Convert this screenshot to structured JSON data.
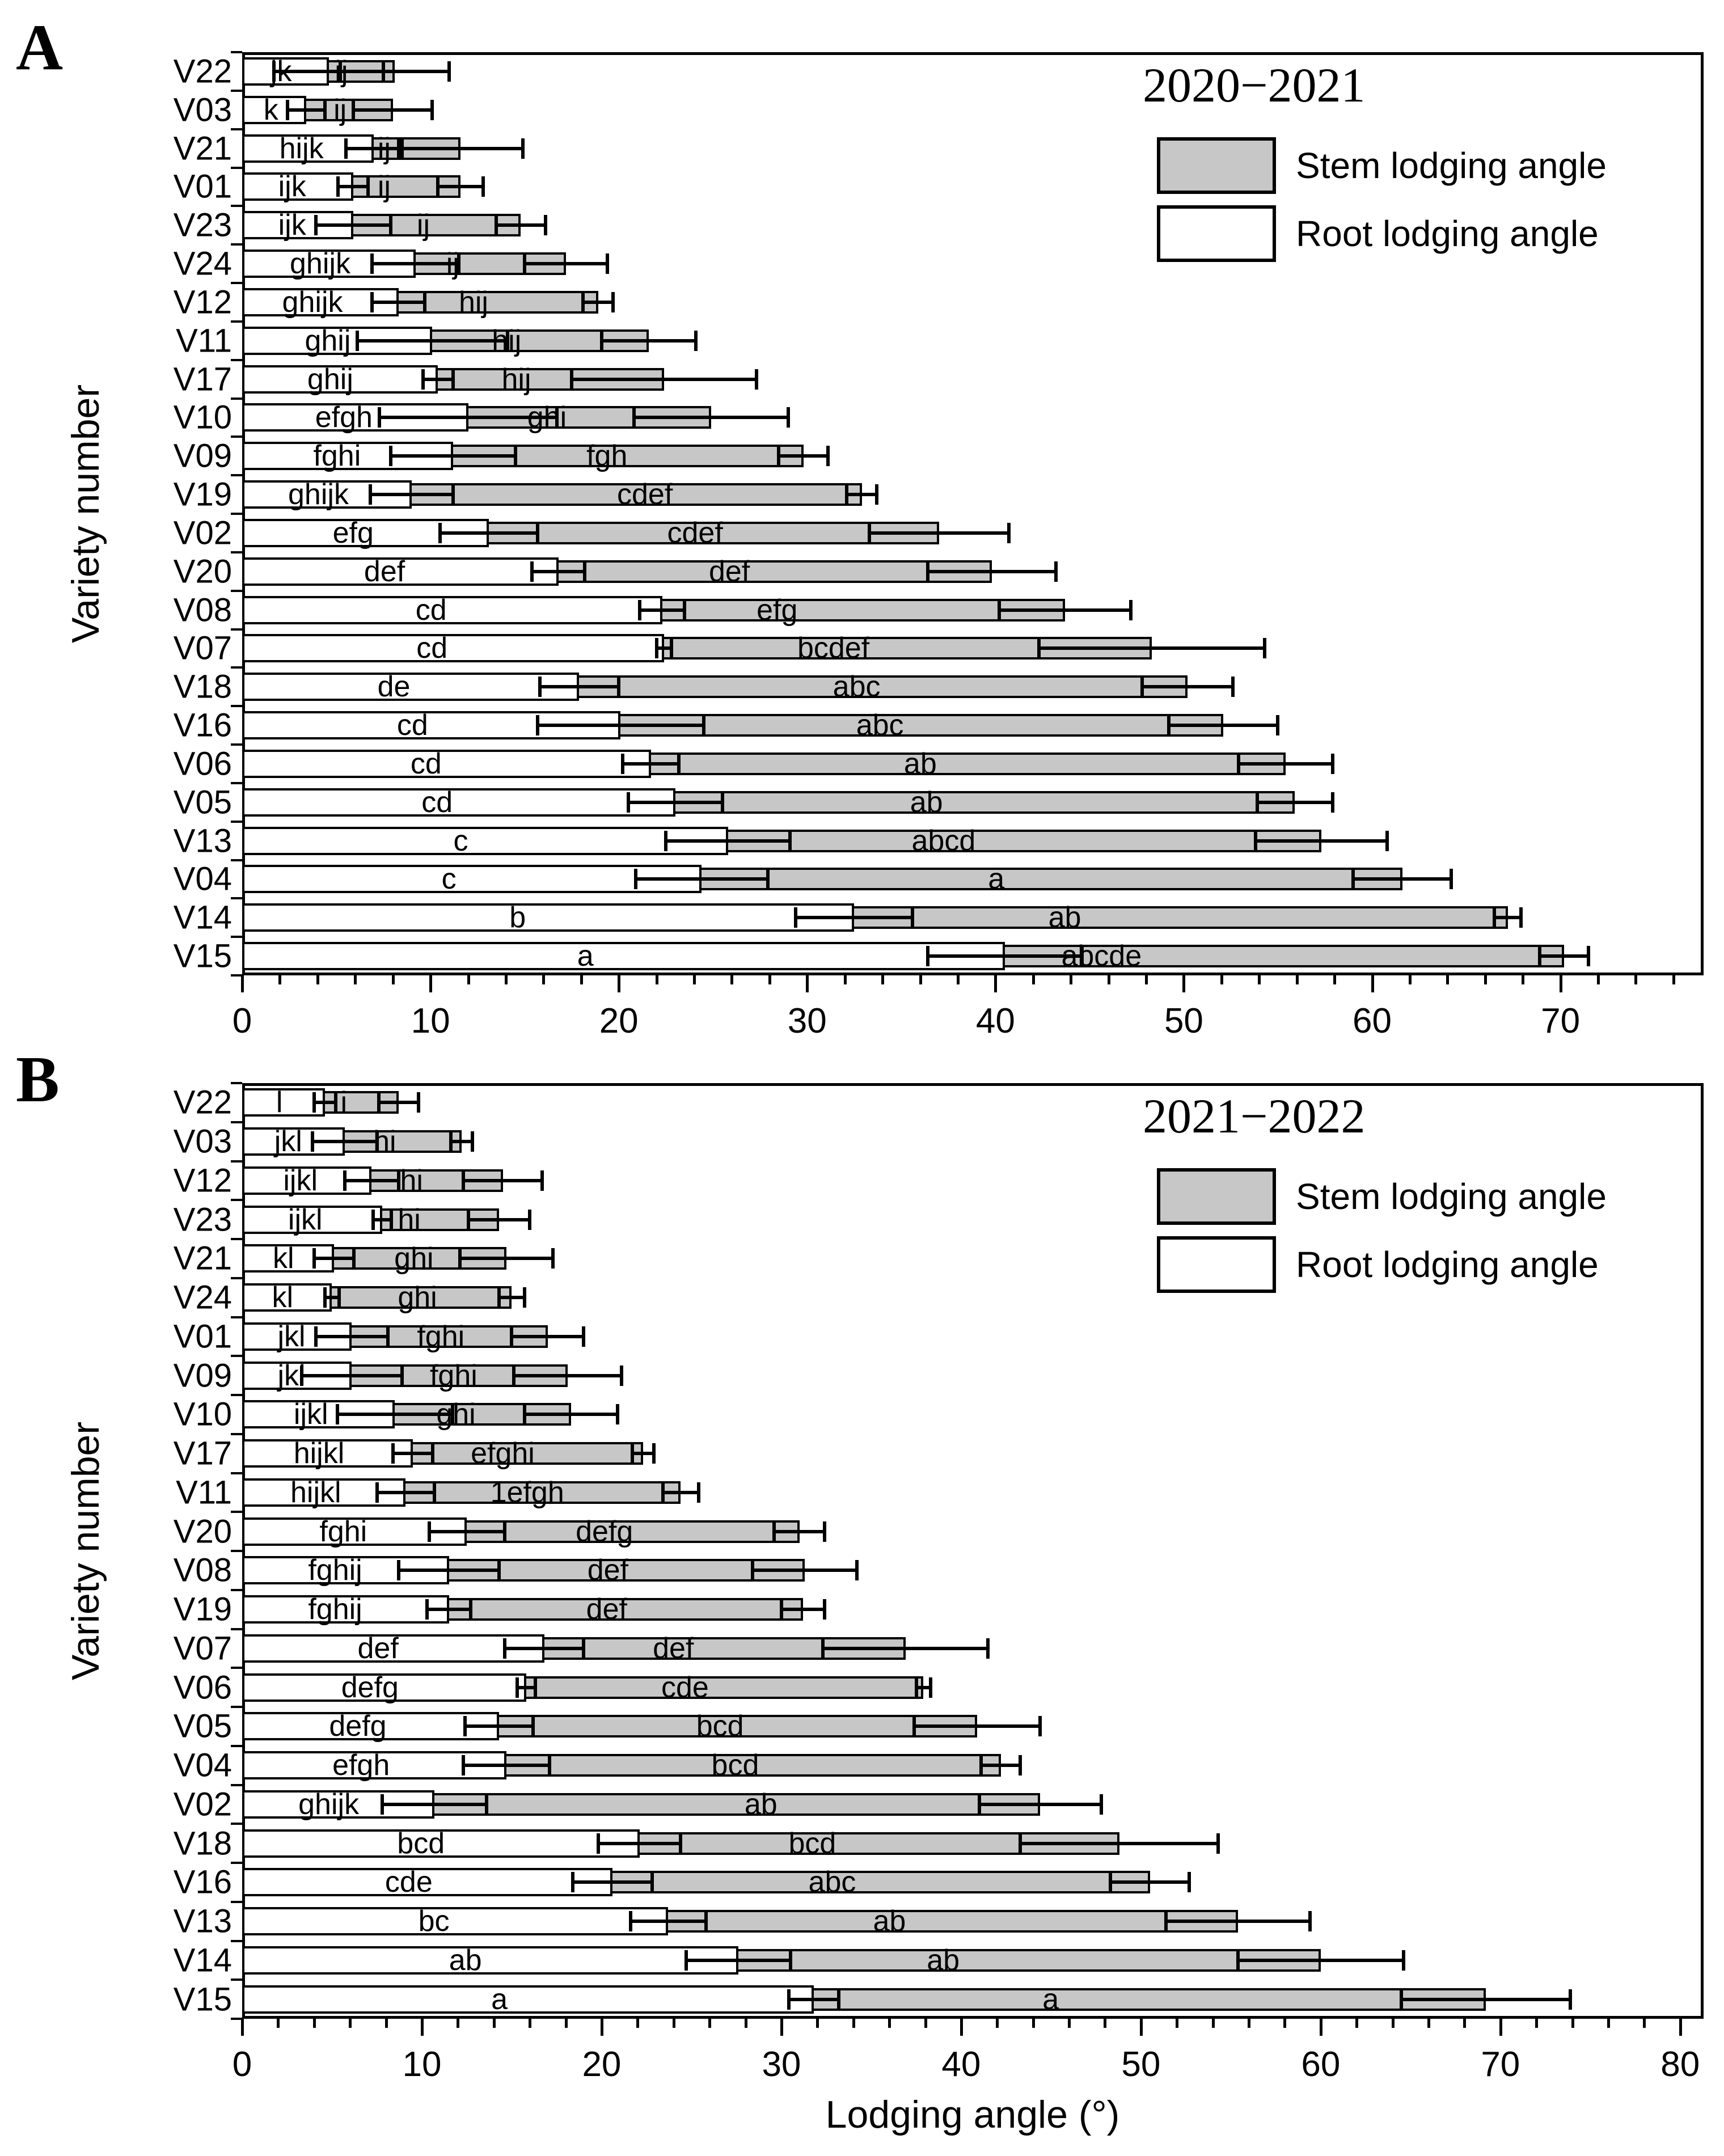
{
  "figure": {
    "xlabel": "Lodging angle (°)",
    "ylabel": "Variety number"
  },
  "chart_data": [
    {
      "type": "bar",
      "panel_label": "A",
      "title": "2020−2021",
      "legend": {
        "stem": "Stem lodging angle",
        "root": "Root lodging angle"
      },
      "xlabel": "Lodging angle (°)",
      "ylabel": "Variety number",
      "xlim": [
        0,
        77.6
      ],
      "xticks": [
        0,
        10,
        20,
        30,
        40,
        50,
        60,
        70
      ],
      "minor_tick_step": 2,
      "bar_color": "#c7c7c7",
      "series_note": "root = white bar (Root lodging angle), stem = gray bar (Stem lodging angle), values in degrees with ± error",
      "rows": [
        {
          "variety": "V22",
          "root": 4.6,
          "root_err": 2.9,
          "root_letter": "jk",
          "stem": 8.1,
          "stem_err": 2.9,
          "stem_letter": "ij"
        },
        {
          "variety": "V03",
          "root": 3.4,
          "root_err": 1.0,
          "root_letter": "k",
          "stem": 8.0,
          "stem_err": 2.1,
          "stem_letter": "ij"
        },
        {
          "variety": "V21",
          "root": 7.0,
          "root_err": 1.5,
          "root_letter": "hijk",
          "stem": 11.6,
          "stem_err": 3.3,
          "stem_letter": "ij"
        },
        {
          "variety": "V01",
          "root": 5.9,
          "root_err": 0.8,
          "root_letter": "ijk",
          "stem": 11.6,
          "stem_err": 1.2,
          "stem_letter": "ij"
        },
        {
          "variety": "V23",
          "root": 5.9,
          "root_err": 2.0,
          "root_letter": "ijk",
          "stem": 14.8,
          "stem_err": 1.3,
          "stem_letter": "ij"
        },
        {
          "variety": "V24",
          "root": 9.2,
          "root_err": 2.3,
          "root_letter": "ghijk",
          "stem": 17.2,
          "stem_err": 2.2,
          "stem_letter": "ij"
        },
        {
          "variety": "V12",
          "root": 8.3,
          "root_err": 1.4,
          "root_letter": "ghijk",
          "stem": 18.9,
          "stem_err": 0.8,
          "stem_letter": "hij"
        },
        {
          "variety": "V11",
          "root": 10.1,
          "root_err": 4.0,
          "root_letter": "ghij",
          "stem": 21.6,
          "stem_err": 2.5,
          "stem_letter": "hij"
        },
        {
          "variety": "V17",
          "root": 10.4,
          "root_err": 0.8,
          "root_letter": "ghij",
          "stem": 22.4,
          "stem_err": 4.9,
          "stem_letter": "hij"
        },
        {
          "variety": "V10",
          "root": 12.0,
          "root_err": 4.7,
          "root_letter": "efgh",
          "stem": 24.9,
          "stem_err": 4.1,
          "stem_letter": "ghi"
        },
        {
          "variety": "V09",
          "root": 11.2,
          "root_err": 3.3,
          "root_letter": "fghi",
          "stem": 29.8,
          "stem_err": 1.3,
          "stem_letter": "fgh"
        },
        {
          "variety": "V19",
          "root": 9.0,
          "root_err": 2.2,
          "root_letter": "ghijk",
          "stem": 32.9,
          "stem_err": 0.8,
          "stem_letter": "cdef"
        },
        {
          "variety": "V02",
          "root": 13.1,
          "root_err": 2.6,
          "root_letter": "efg",
          "stem": 37.0,
          "stem_err": 3.7,
          "stem_letter": "cdef"
        },
        {
          "variety": "V20",
          "root": 16.8,
          "root_err": 1.4,
          "root_letter": "def",
          "stem": 39.8,
          "stem_err": 3.4,
          "stem_letter": "def"
        },
        {
          "variety": "V08",
          "root": 22.3,
          "root_err": 1.2,
          "root_letter": "cd",
          "stem": 43.7,
          "stem_err": 3.5,
          "stem_letter": "efg"
        },
        {
          "variety": "V07",
          "root": 22.4,
          "root_err": 0.4,
          "root_letter": "cd",
          "stem": 48.3,
          "stem_err": 6.0,
          "stem_letter": "bcdef"
        },
        {
          "variety": "V18",
          "root": 17.9,
          "root_err": 2.1,
          "root_letter": "de",
          "stem": 50.2,
          "stem_err": 2.4,
          "stem_letter": "abc"
        },
        {
          "variety": "V16",
          "root": 20.1,
          "root_err": 4.4,
          "root_letter": "cd",
          "stem": 52.1,
          "stem_err": 2.9,
          "stem_letter": "abc"
        },
        {
          "variety": "V06",
          "root": 21.7,
          "root_err": 1.5,
          "root_letter": "cd",
          "stem": 55.4,
          "stem_err": 2.5,
          "stem_letter": "ab"
        },
        {
          "variety": "V05",
          "root": 23.0,
          "root_err": 2.5,
          "root_letter": "cd",
          "stem": 55.9,
          "stem_err": 2.0,
          "stem_letter": "ab"
        },
        {
          "variety": "V13",
          "root": 25.8,
          "root_err": 3.3,
          "root_letter": "c",
          "stem": 57.3,
          "stem_err": 3.5,
          "stem_letter": "abcd"
        },
        {
          "variety": "V04",
          "root": 24.4,
          "root_err": 3.5,
          "root_letter": "c",
          "stem": 61.6,
          "stem_err": 2.6,
          "stem_letter": "a"
        },
        {
          "variety": "V14",
          "root": 32.5,
          "root_err": 3.1,
          "root_letter": "b",
          "stem": 67.2,
          "stem_err": 0.7,
          "stem_letter": "ab"
        },
        {
          "variety": "V15",
          "root": 40.5,
          "root_err": 4.1,
          "root_letter": "a",
          "stem": 70.2,
          "stem_err": 1.3,
          "stem_letter": "abcde"
        }
      ]
    },
    {
      "type": "bar",
      "panel_label": "B",
      "title": "2021−2022",
      "legend": {
        "stem": "Stem lodging angle",
        "root": "Root lodging angle"
      },
      "xlabel": "Lodging angle (°)",
      "ylabel": "Variety number",
      "xlim": [
        0,
        81.3
      ],
      "xticks": [
        0,
        10,
        20,
        30,
        40,
        50,
        60,
        70,
        80
      ],
      "minor_tick_step": 2,
      "bar_color": "#c7c7c7",
      "series_note": "root = white bar (Root lodging angle), stem = gray bar (Stem lodging angle), values in degrees with ± error",
      "rows": [
        {
          "variety": "V22",
          "root": 4.6,
          "root_err": 0.6,
          "root_letter": "l",
          "stem": 8.7,
          "stem_err": 1.1,
          "stem_letter": "i"
        },
        {
          "variety": "V03",
          "root": 5.7,
          "root_err": 1.8,
          "root_letter": "jkl",
          "stem": 12.2,
          "stem_err": 0.6,
          "stem_letter": "hi"
        },
        {
          "variety": "V12",
          "root": 7.2,
          "root_err": 1.5,
          "root_letter": "ijkl",
          "stem": 14.5,
          "stem_err": 2.2,
          "stem_letter": "hi"
        },
        {
          "variety": "V23",
          "root": 7.8,
          "root_err": 0.5,
          "root_letter": "ijkl",
          "stem": 14.3,
          "stem_err": 1.7,
          "stem_letter": "hi"
        },
        {
          "variety": "V21",
          "root": 5.1,
          "root_err": 1.1,
          "root_letter": "kl",
          "stem": 14.7,
          "stem_err": 2.6,
          "stem_letter": "ghi"
        },
        {
          "variety": "V24",
          "root": 5.0,
          "root_err": 0.4,
          "root_letter": "kl",
          "stem": 15.0,
          "stem_err": 0.7,
          "stem_letter": "ghi"
        },
        {
          "variety": "V01",
          "root": 6.1,
          "root_err": 2.0,
          "root_letter": "jkl",
          "stem": 17.0,
          "stem_err": 2.0,
          "stem_letter": "fghi"
        },
        {
          "variety": "V09",
          "root": 6.1,
          "root_err": 2.8,
          "root_letter": "jkl",
          "stem": 18.1,
          "stem_err": 3.0,
          "stem_letter": "fghi"
        },
        {
          "variety": "V10",
          "root": 8.5,
          "root_err": 3.2,
          "root_letter": "ijkl",
          "stem": 18.3,
          "stem_err": 2.6,
          "stem_letter": "ghi"
        },
        {
          "variety": "V17",
          "root": 9.5,
          "root_err": 1.1,
          "root_letter": "hijkl",
          "stem": 22.3,
          "stem_err": 0.6,
          "stem_letter": "efghi"
        },
        {
          "variety": "V11",
          "root": 9.1,
          "root_err": 1.6,
          "root_letter": "hijkl",
          "stem": 24.4,
          "stem_err": 1.0,
          "stem_letter": "1efgh"
        },
        {
          "variety": "V20",
          "root": 12.5,
          "root_err": 2.1,
          "root_letter": "fghi",
          "stem": 31.0,
          "stem_err": 1.4,
          "stem_letter": "defg"
        },
        {
          "variety": "V08",
          "root": 11.5,
          "root_err": 2.8,
          "root_letter": "fghij",
          "stem": 31.3,
          "stem_err": 2.9,
          "stem_letter": "def"
        },
        {
          "variety": "V19",
          "root": 11.5,
          "root_err": 1.2,
          "root_letter": "fghij",
          "stem": 31.2,
          "stem_err": 1.2,
          "stem_letter": "def"
        },
        {
          "variety": "V07",
          "root": 16.8,
          "root_err": 2.2,
          "root_letter": "def",
          "stem": 36.9,
          "stem_err": 4.6,
          "stem_letter": "def"
        },
        {
          "variety": "V06",
          "root": 15.8,
          "root_err": 0.5,
          "root_letter": "defg",
          "stem": 37.9,
          "stem_err": 0.4,
          "stem_letter": "cde"
        },
        {
          "variety": "V05",
          "root": 14.3,
          "root_err": 1.9,
          "root_letter": "defg",
          "stem": 40.9,
          "stem_err": 3.5,
          "stem_letter": "bcd"
        },
        {
          "variety": "V04",
          "root": 14.7,
          "root_err": 2.4,
          "root_letter": "efgh",
          "stem": 42.2,
          "stem_err": 1.1,
          "stem_letter": "bcd"
        },
        {
          "variety": "V02",
          "root": 10.7,
          "root_err": 2.9,
          "root_letter": "ghijk",
          "stem": 44.4,
          "stem_err": 3.4,
          "stem_letter": "ab"
        },
        {
          "variety": "V18",
          "root": 22.1,
          "root_err": 2.3,
          "root_letter": "bcd",
          "stem": 48.8,
          "stem_err": 5.5,
          "stem_letter": "bcd"
        },
        {
          "variety": "V16",
          "root": 20.6,
          "root_err": 2.2,
          "root_letter": "cde",
          "stem": 50.5,
          "stem_err": 2.2,
          "stem_letter": "abc"
        },
        {
          "variety": "V13",
          "root": 23.7,
          "root_err": 2.1,
          "root_letter": "bc",
          "stem": 55.4,
          "stem_err": 4.0,
          "stem_letter": "ab"
        },
        {
          "variety": "V14",
          "root": 27.6,
          "root_err": 2.9,
          "root_letter": "ab",
          "stem": 60.0,
          "stem_err": 4.6,
          "stem_letter": "ab"
        },
        {
          "variety": "V15",
          "root": 31.8,
          "root_err": 1.4,
          "root_letter": "a",
          "stem": 69.2,
          "stem_err": 4.7,
          "stem_letter": "a"
        }
      ]
    }
  ]
}
